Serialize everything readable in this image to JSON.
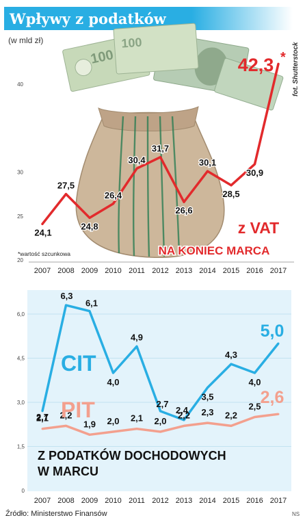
{
  "header": {
    "title": "Wpływy z podatków",
    "subtitle": "(w mld zł)",
    "photo_credit": "fot. Shutterstock"
  },
  "footer": {
    "source": "Źródło: Ministerstwo Finansów",
    "author": "NS"
  },
  "colors": {
    "title_bar": "#29aee3",
    "vat": "#e22a2c",
    "cit": "#29aee3",
    "pit": "#f3a08e",
    "bottom_panel_bg": "#e3f3fb"
  },
  "chart_data": [
    {
      "type": "line",
      "x": [
        "2007",
        "2008",
        "2009",
        "2010",
        "2011",
        "2012",
        "2013",
        "2014",
        "2015",
        "2016",
        "2017"
      ],
      "series": [
        {
          "name": "z VAT",
          "values": [
            24.1,
            27.5,
            24.8,
            26.4,
            30.4,
            31.7,
            26.6,
            30.1,
            28.5,
            30.9,
            42.3
          ],
          "labels": [
            "24,1",
            "27,5",
            "24,8",
            "26,4",
            "30,4",
            "31,7",
            "26,6",
            "30,1",
            "28,5",
            "30,9",
            "42,3"
          ]
        }
      ],
      "label_marker_last": "*",
      "annotation_subtitle": "NA KONIEC MARCA",
      "footnote": "*wartość szcunkowa",
      "y_ticks": [
        "20",
        "25",
        "30",
        "40"
      ],
      "ylim": [
        20,
        45
      ],
      "grid": false
    },
    {
      "type": "line",
      "x": [
        "2007",
        "2008",
        "2009",
        "2010",
        "2011",
        "2012",
        "2013",
        "2014",
        "2015",
        "2016",
        "2017"
      ],
      "series": [
        {
          "name": "CIT",
          "values": [
            2.7,
            6.3,
            6.1,
            4.0,
            4.9,
            2.7,
            2.4,
            3.5,
            4.3,
            4.0,
            5.0
          ],
          "labels": [
            "2,7",
            "6,3",
            "6,1",
            "4,0",
            "4,9",
            "2,7",
            "2,4",
            "3,5",
            "4,3",
            "4,0",
            "5,0"
          ]
        },
        {
          "name": "PIT",
          "values": [
            2.1,
            2.2,
            1.9,
            2.0,
            2.1,
            2.0,
            2.2,
            2.3,
            2.2,
            2.5,
            2.6
          ],
          "labels": [
            "2,1",
            "2,2",
            "1,9",
            "2,0",
            "2,1",
            "2,0",
            "2,2",
            "2,3",
            "2,2",
            "2,5",
            "2,6"
          ]
        }
      ],
      "annotation": "Z PODATKÓW DOCHODOWYCH W MARCU",
      "y_ticks": [
        "0",
        "1,5",
        "3,0",
        "4,5",
        "6,0"
      ],
      "ylim": [
        0,
        6.5
      ],
      "grid": true
    }
  ]
}
